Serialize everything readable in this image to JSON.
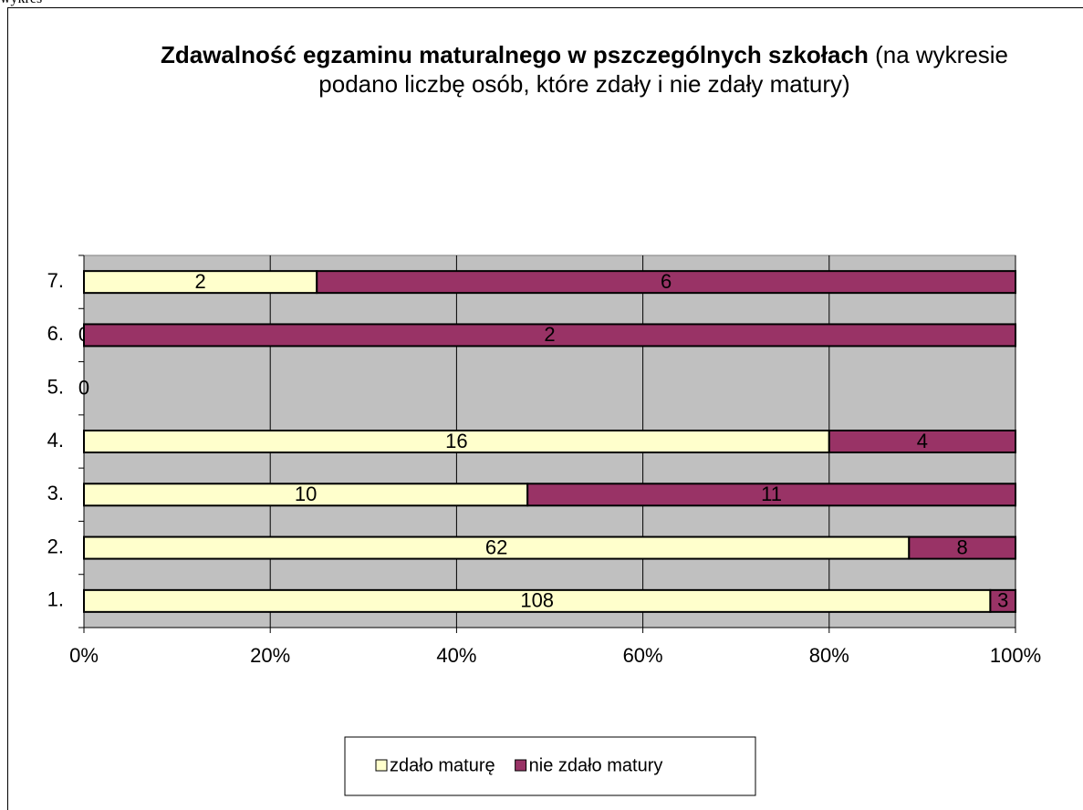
{
  "page_label": "wykres",
  "chart_data": {
    "type": "bar",
    "orientation": "horizontal",
    "stack": "percent",
    "title": "Zdawalność egzaminu maturalnego w pszczególnych szkołach",
    "subtitle": "(na wykresie podano liczbę osób, które zdały i nie zdały matury)",
    "categories": [
      "1.",
      "2.",
      "3.",
      "4.",
      "5.",
      "6.",
      "7."
    ],
    "series": [
      {
        "name": "zdało maturę",
        "color": "#ffffcc",
        "values": [
          108,
          62,
          10,
          16,
          0,
          0,
          2
        ]
      },
      {
        "name": "nie zdało matury",
        "color": "#993366",
        "values": [
          3,
          8,
          11,
          4,
          0,
          2,
          6
        ]
      }
    ],
    "xlim": [
      0,
      100
    ],
    "xticks": [
      {
        "value": 0,
        "label": "0%"
      },
      {
        "value": 20,
        "label": "20%"
      },
      {
        "value": 40,
        "label": "40%"
      },
      {
        "value": 60,
        "label": "60%"
      },
      {
        "value": 80,
        "label": "80%"
      },
      {
        "value": 100,
        "label": "100%"
      }
    ],
    "grid": true,
    "plot_background": "#c0c0c0",
    "legend": "bottom"
  }
}
